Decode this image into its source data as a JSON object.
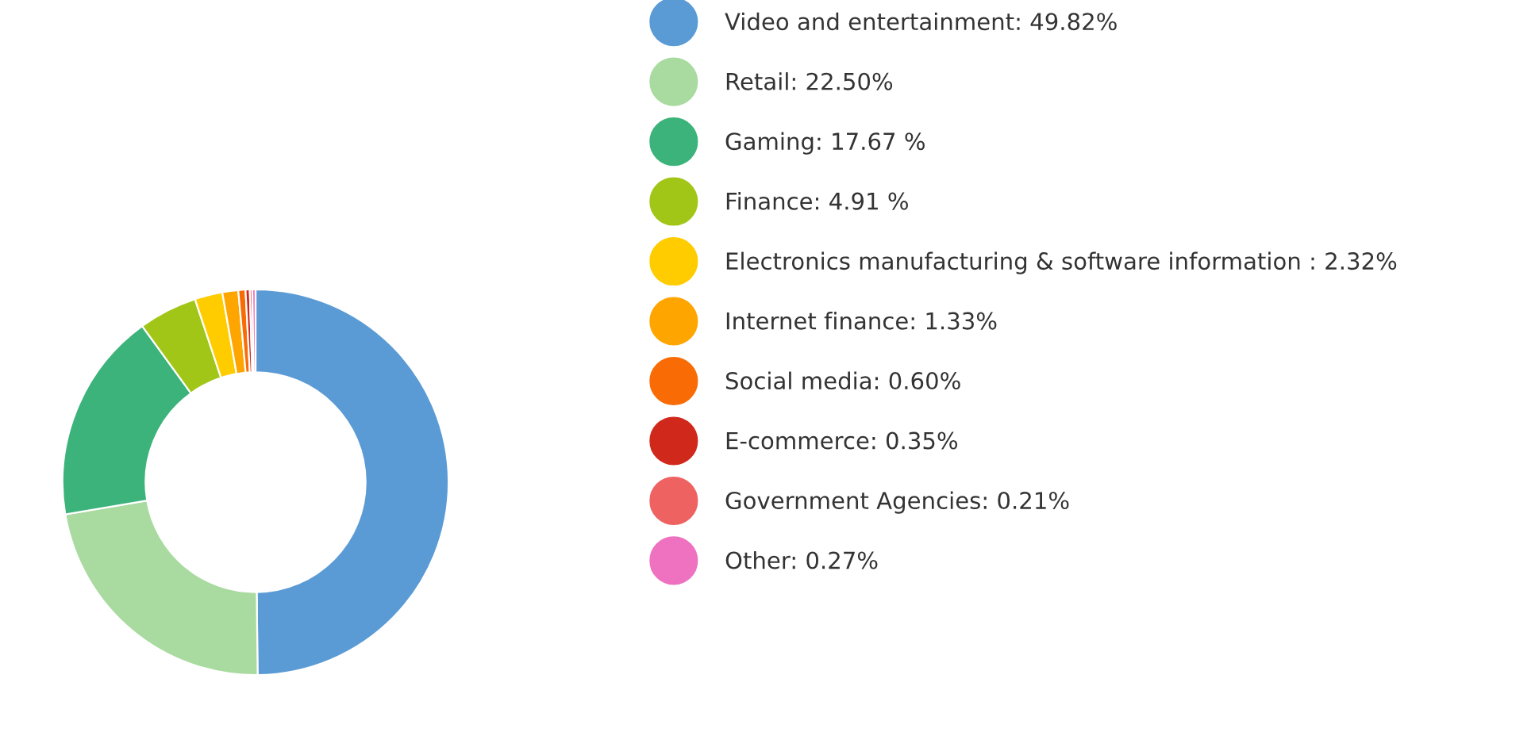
{
  "chart_data": {
    "type": "donut",
    "categories": [
      "Video and entertainment",
      "Retail",
      "Gaming",
      "Finance",
      "Electronics manufacturing & software information",
      "Internet finance",
      "Social media",
      "E-commerce",
      "Government Agencies",
      "Other"
    ],
    "values": [
      49.82,
      22.5,
      17.67,
      4.91,
      2.32,
      1.33,
      0.6,
      0.35,
      0.21,
      0.27
    ],
    "value_labels": [
      ": 49.82%",
      ": 22.50%",
      ": 17.67 %",
      ": 4.91 %",
      " : 2.32%",
      ": 1.33%",
      ": 0.60%",
      ": 0.35%",
      ": 0.21%",
      ": 0.27%"
    ],
    "colors": [
      "#5b9bd5",
      "#a9dba0",
      "#3cb37a",
      "#a2c617",
      "#ffcc00",
      "#ffa500",
      "#f96c05",
      "#d0291c",
      "#ef6262",
      "#ee72c0"
    ],
    "legend": "right"
  }
}
